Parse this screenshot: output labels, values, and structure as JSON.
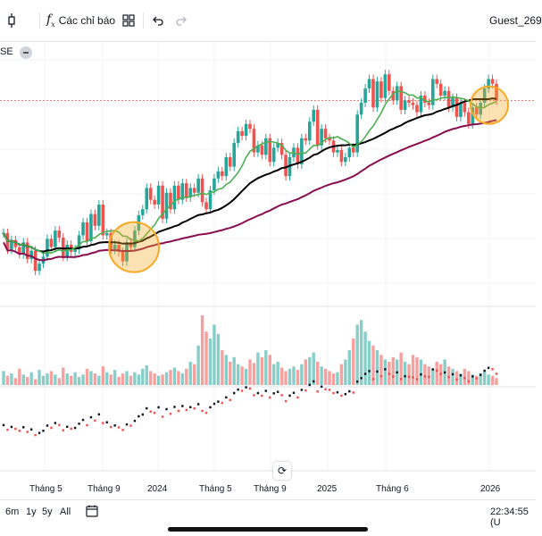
{
  "toolbar": {
    "indicators_label": "Các chỉ báo",
    "user": "Guest_269"
  },
  "legend": {
    "ticker_suffix": "SE"
  },
  "axis": {
    "x_labels": [
      "Tháng 5",
      "Tháng 9",
      "2024",
      "Tháng 5",
      "Tháng 9",
      "2025",
      "Tháng 6",
      "2026"
    ]
  },
  "bottom": {
    "ranges": [
      "6m",
      "1y",
      "5y",
      "All"
    ],
    "time": "22:34:55 (U"
  },
  "colors": {
    "up": "#26a69a",
    "down": "#ef5350",
    "ma_short": "#4caf50",
    "ma_long": "#000000",
    "ma_mid": "#880e4f",
    "highlight": "#f7a825"
  },
  "chart_data": {
    "type": "candlestick",
    "series": [
      {
        "values": [
          190,
          176,
          184,
          178,
          172,
          182,
          168,
          175,
          158,
          164,
          170,
          185,
          178,
          192,
          186,
          170,
          180,
          174,
          176,
          188,
          199,
          183,
          206,
          196,
          214,
          188,
          190,
          176,
          180,
          174,
          166,
          182,
          178,
          192,
          205,
          210,
          228,
          218,
          214,
          230,
          202,
          224,
          210,
          230,
          218,
          232,
          220,
          228,
          224,
          236,
          216,
          210,
          226,
          236,
          242,
          238,
          254,
          246,
          266,
          276,
          272,
          282,
          278,
          258,
          264,
          256,
          270,
          250,
          262,
          266,
          256,
          238,
          254,
          262,
          248,
          270,
          268,
          284,
          294,
          264,
          278,
          270,
          268,
          258,
          260,
          250,
          254,
          262,
          258,
          290,
          300,
          312,
          320,
          296,
          318,
          304,
          324,
          310,
          302,
          314,
          294,
          302,
          300,
          298,
          292,
          306,
          300,
          298,
          320,
          316,
          306,
          310,
          296,
          304,
          288,
          300,
          292,
          282,
          296,
          290,
          300,
          312,
          320,
          316,
          302
        ]
      }
    ]
  }
}
